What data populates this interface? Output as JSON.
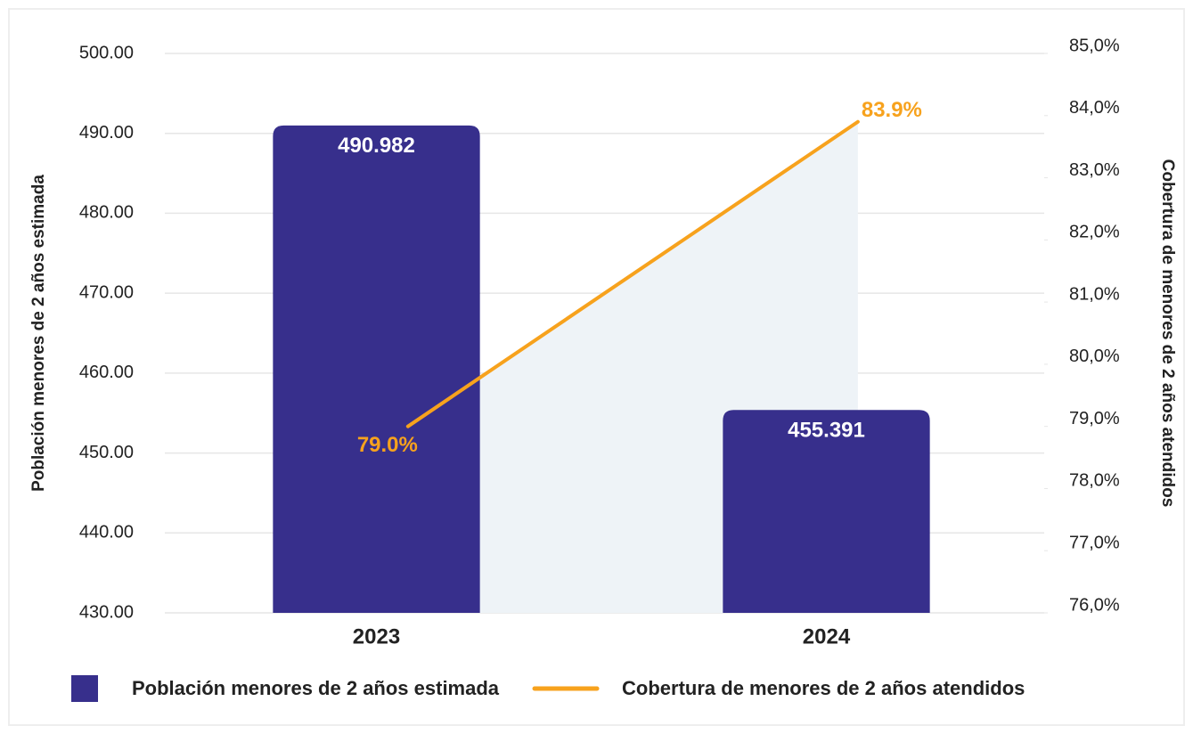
{
  "chart_data": {
    "type": "bar_line",
    "categories": [
      "2023",
      "2024"
    ],
    "series": [
      {
        "name": "Población menores de 2 años estimada",
        "type": "bar",
        "color": "#372f8c",
        "values": [
          490.982,
          455.391
        ]
      },
      {
        "name": "Cobertura de menores de 2 años atendidos",
        "type": "line",
        "axis": "y2",
        "color": "#f7a21d",
        "values": [
          79.0,
          83.9
        ],
        "value_labels": [
          "79.0%",
          "83.9%"
        ]
      }
    ],
    "ylabel": "Población menores de 2 años estimada",
    "y2label": "Cobertura de menores de 2 años atendidos",
    "ylim": [
      430,
      500
    ],
    "yticks": [
      {
        "value": 430,
        "label": "430.00"
      },
      {
        "value": 440,
        "label": "440.00"
      },
      {
        "value": 450,
        "label": "450.00"
      },
      {
        "value": 460,
        "label": "460.00"
      },
      {
        "value": 470,
        "label": "470.00"
      },
      {
        "value": 480,
        "label": "480.00"
      },
      {
        "value": 490,
        "label": "490.00"
      },
      {
        "value": 500,
        "label": "500.00"
      }
    ],
    "y2lim": [
      76,
      85
    ],
    "y2ticks": [
      {
        "value": 76,
        "label": "76,0%"
      },
      {
        "value": 77,
        "label": "77,0%"
      },
      {
        "value": 78,
        "label": "78,0%"
      },
      {
        "value": 79,
        "label": "79,0%"
      },
      {
        "value": 80,
        "label": "80,0%"
      },
      {
        "value": 81,
        "label": "81,0%"
      },
      {
        "value": 82,
        "label": "82,0%"
      },
      {
        "value": 83,
        "label": "83,0%"
      },
      {
        "value": 84,
        "label": "84,0%"
      },
      {
        "value": 85,
        "label": "85,0%"
      }
    ],
    "grid": true,
    "legend": "bottom"
  }
}
